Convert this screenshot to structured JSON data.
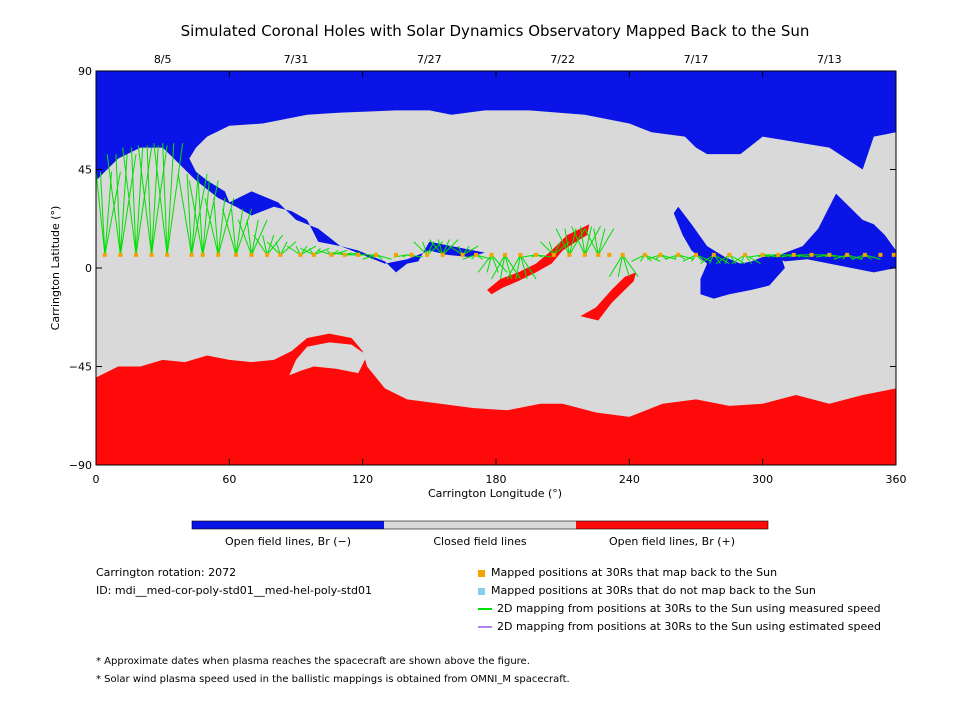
{
  "title": "Simulated Coronal Holes with Solar Dynamics Observatory Mapped Back to the Sun",
  "colors": {
    "open_negative": "#0a14e6",
    "closed": "#d9d9d9",
    "open_positive": "#ff0a0a",
    "mapped": "#f4a300",
    "unmapped": "#87ceeb",
    "measured": "#00e000",
    "estimated": "#b085e8"
  },
  "chart_data": {
    "type": "heatmap",
    "title": "Simulated Coronal Holes with Solar Dynamics Observatory Mapped Back to the Sun",
    "xlabel": "Carrington Longitude (°)",
    "ylabel": "Carrington Latitude (°)",
    "xlim": [
      0,
      360
    ],
    "ylim": [
      -90,
      90
    ],
    "x_ticks": [
      0,
      60,
      120,
      180,
      240,
      300,
      360
    ],
    "y_ticks": [
      -90,
      -45,
      0,
      45,
      90
    ],
    "top_axis_dates": [
      {
        "label": "8/5",
        "lon": 30
      },
      {
        "label": "7/31",
        "lon": 90
      },
      {
        "label": "7/27",
        "lon": 150
      },
      {
        "label": "7/22",
        "lon": 210
      },
      {
        "label": "7/17",
        "lon": 270
      },
      {
        "label": "7/13",
        "lon": 330
      }
    ],
    "colorbar": [
      {
        "label": "Open field lines, Br (−)",
        "color": "#0a14e6"
      },
      {
        "label": "Closed field lines",
        "color": "#d9d9d9"
      },
      {
        "label": "Open field lines, Br (+)",
        "color": "#ff0a0a"
      }
    ],
    "regions": {
      "north_polar_open_negative": [
        [
          0,
          90
        ],
        [
          360,
          90
        ],
        [
          360,
          62
        ],
        [
          350,
          60
        ],
        [
          345,
          45
        ],
        [
          330,
          55
        ],
        [
          300,
          60
        ],
        [
          290,
          52
        ],
        [
          275,
          52
        ],
        [
          270,
          55
        ],
        [
          265,
          60
        ],
        [
          250,
          62
        ],
        [
          240,
          66
        ],
        [
          220,
          70
        ],
        [
          195,
          72
        ],
        [
          175,
          72
        ],
        [
          160,
          70
        ],
        [
          150,
          72
        ],
        [
          135,
          72
        ],
        [
          110,
          71
        ],
        [
          95,
          70
        ],
        [
          75,
          66
        ],
        [
          60,
          65
        ],
        [
          50,
          60
        ],
        [
          45,
          55
        ],
        [
          42,
          50
        ],
        [
          45,
          44
        ],
        [
          50,
          40
        ],
        [
          58,
          35
        ],
        [
          60,
          30
        ],
        [
          70,
          35
        ],
        [
          82,
          30
        ],
        [
          90,
          22
        ],
        [
          100,
          18
        ],
        [
          110,
          10
        ],
        [
          118,
          8
        ],
        [
          125,
          5
        ],
        [
          130,
          3
        ],
        [
          135,
          -2
        ],
        [
          140,
          2
        ],
        [
          145,
          3
        ],
        [
          150,
          12
        ],
        [
          160,
          10
        ],
        [
          175,
          7
        ],
        [
          168,
          5
        ],
        [
          158,
          6
        ],
        [
          150,
          8
        ],
        [
          140,
          4
        ],
        [
          130,
          2
        ],
        [
          120,
          6
        ],
        [
          110,
          10
        ],
        [
          100,
          12
        ],
        [
          95,
          22
        ],
        [
          88,
          26
        ],
        [
          80,
          28
        ],
        [
          70,
          24
        ],
        [
          63,
          28
        ],
        [
          55,
          32
        ],
        [
          45,
          40
        ],
        [
          40,
          45
        ],
        [
          35,
          50
        ],
        [
          30,
          55
        ],
        [
          20,
          55
        ],
        [
          10,
          50
        ],
        [
          5,
          45
        ],
        [
          0,
          40
        ]
      ],
      "equatorial_open_negative_patch": [
        [
          262,
          28
        ],
        [
          268,
          20
        ],
        [
          275,
          10
        ],
        [
          283,
          5
        ],
        [
          290,
          2
        ],
        [
          295,
          3
        ],
        [
          300,
          5
        ],
        [
          308,
          6
        ],
        [
          310,
          0
        ],
        [
          303,
          -8
        ],
        [
          295,
          -10
        ],
        [
          285,
          -12
        ],
        [
          278,
          -14
        ],
        [
          272,
          -12
        ],
        [
          272,
          -5
        ],
        [
          275,
          2
        ],
        [
          268,
          8
        ],
        [
          264,
          15
        ],
        [
          260,
          25
        ]
      ],
      "east_limb_open_negative": [
        [
          305,
          5
        ],
        [
          318,
          10
        ],
        [
          325,
          18
        ],
        [
          330,
          28
        ],
        [
          333,
          34
        ],
        [
          337,
          30
        ],
        [
          345,
          22
        ],
        [
          350,
          20
        ],
        [
          355,
          15
        ],
        [
          360,
          8
        ],
        [
          360,
          0
        ],
        [
          350,
          -2
        ],
        [
          340,
          0
        ],
        [
          330,
          2
        ],
        [
          320,
          4
        ],
        [
          310,
          3
        ]
      ],
      "south_polar_open_positive": [
        [
          0,
          -90
        ],
        [
          360,
          -90
        ],
        [
          360,
          -55
        ],
        [
          345,
          -58
        ],
        [
          330,
          -62
        ],
        [
          315,
          -58
        ],
        [
          300,
          -62
        ],
        [
          285,
          -63
        ],
        [
          270,
          -60
        ],
        [
          255,
          -62
        ],
        [
          240,
          -68
        ],
        [
          225,
          -66
        ],
        [
          210,
          -62
        ],
        [
          200,
          -62
        ],
        [
          185,
          -65
        ],
        [
          170,
          -64
        ],
        [
          155,
          -62
        ],
        [
          140,
          -60
        ],
        [
          130,
          -55
        ],
        [
          122,
          -45
        ],
        [
          120,
          -38
        ],
        [
          115,
          -32
        ],
        [
          105,
          -30
        ],
        [
          95,
          -32
        ],
        [
          88,
          -38
        ],
        [
          80,
          -42
        ],
        [
          70,
          -43
        ],
        [
          60,
          -42
        ],
        [
          50,
          -40
        ],
        [
          40,
          -43
        ],
        [
          30,
          -42
        ],
        [
          20,
          -45
        ],
        [
          10,
          -45
        ],
        [
          0,
          -50
        ]
      ],
      "south_polar_bay": [
        [
          87,
          -49
        ],
        [
          92,
          -47
        ],
        [
          98,
          -45
        ],
        [
          108,
          -46
        ],
        [
          118,
          -48
        ],
        [
          122,
          -40
        ],
        [
          115,
          -35
        ],
        [
          105,
          -34
        ],
        [
          95,
          -36
        ],
        [
          90,
          -42
        ]
      ],
      "equatorial_open_positive_streak": [
        [
          176,
          -10
        ],
        [
          182,
          -5
        ],
        [
          190,
          -2
        ],
        [
          198,
          2
        ],
        [
          205,
          8
        ],
        [
          212,
          15
        ],
        [
          218,
          18
        ],
        [
          222,
          20
        ],
        [
          221,
          15
        ],
        [
          216,
          12
        ],
        [
          210,
          8
        ],
        [
          205,
          2
        ],
        [
          198,
          -2
        ],
        [
          190,
          -6
        ],
        [
          183,
          -9
        ],
        [
          178,
          -12
        ]
      ],
      "isolated_open_positive_patch": [
        [
          218,
          -22
        ],
        [
          225,
          -18
        ],
        [
          232,
          -10
        ],
        [
          238,
          -4
        ],
        [
          243,
          -2
        ],
        [
          242,
          -6
        ],
        [
          238,
          -10
        ],
        [
          232,
          -16
        ],
        [
          226,
          -24
        ]
      ]
    },
    "mapped_points_lon": [
      4,
      11,
      18,
      25,
      32,
      43,
      48,
      55,
      63,
      70,
      77,
      83,
      92,
      98,
      106,
      112,
      118,
      126,
      135,
      142,
      149,
      156,
      165,
      171,
      178,
      184,
      191,
      198,
      206,
      213,
      220,
      226,
      231,
      237,
      247,
      254,
      262,
      270,
      278,
      285,
      292,
      300,
      307,
      314,
      322,
      330,
      338,
      346,
      353,
      359
    ],
    "mapped_points_lat": 6,
    "field_line_footpoints": [
      {
        "lon": 4,
        "lat": 44
      },
      {
        "lon": 11,
        "lat": 52
      },
      {
        "lon": 18,
        "lat": 55
      },
      {
        "lon": 25,
        "lat": 56
      },
      {
        "lon": 32,
        "lat": 57
      },
      {
        "lon": 43,
        "lat": 43
      },
      {
        "lon": 48,
        "lat": 40
      },
      {
        "lon": 55,
        "lat": 32
      },
      {
        "lon": 63,
        "lat": 27
      },
      {
        "lon": 70,
        "lat": 22
      },
      {
        "lon": 77,
        "lat": 15
      },
      {
        "lon": 83,
        "lat": 12
      },
      {
        "lon": 92,
        "lat": 10
      },
      {
        "lon": 98,
        "lat": 9
      },
      {
        "lon": 106,
        "lat": 8
      },
      {
        "lon": 112,
        "lat": 7
      },
      {
        "lon": 118,
        "lat": 6
      },
      {
        "lon": 126,
        "lat": 4
      },
      {
        "lon": 140,
        "lat": 5
      },
      {
        "lon": 149,
        "lat": 12
      },
      {
        "lon": 156,
        "lat": 13
      },
      {
        "lon": 165,
        "lat": 10
      },
      {
        "lon": 171,
        "lat": 4
      },
      {
        "lon": 178,
        "lat": -2
      },
      {
        "lon": 184,
        "lat": -5
      },
      {
        "lon": 191,
        "lat": -5
      },
      {
        "lon": 198,
        "lat": 5
      },
      {
        "lon": 206,
        "lat": 12
      },
      {
        "lon": 213,
        "lat": 18
      },
      {
        "lon": 220,
        "lat": 19
      },
      {
        "lon": 226,
        "lat": 18
      },
      {
        "lon": 237,
        "lat": -4
      },
      {
        "lon": 247,
        "lat": 3
      },
      {
        "lon": 254,
        "lat": 4
      },
      {
        "lon": 262,
        "lat": 4
      },
      {
        "lon": 270,
        "lat": 3
      },
      {
        "lon": 278,
        "lat": 2
      },
      {
        "lon": 285,
        "lat": 2
      },
      {
        "lon": 292,
        "lat": 2
      },
      {
        "lon": 300,
        "lat": 5
      },
      {
        "lon": 307,
        "lat": 6
      },
      {
        "lon": 314,
        "lat": 5
      },
      {
        "lon": 322,
        "lat": 6
      },
      {
        "lon": 330,
        "lat": 5
      },
      {
        "lon": 338,
        "lat": 4
      },
      {
        "lon": 346,
        "lat": 4
      }
    ]
  },
  "legend": [
    {
      "label": "Mapped positions at 30Rs that map back to the Sun",
      "kind": "square",
      "color": "#f4a300"
    },
    {
      "label": "Mapped positions at 30Rs that do not map back to the Sun",
      "kind": "square",
      "color": "#87ceeb"
    },
    {
      "label": "2D mapping from positions at 30Rs to the Sun using measured speed",
      "kind": "line",
      "color": "#00e000"
    },
    {
      "label": "2D mapping from positions at 30Rs to the Sun using estimated speed",
      "kind": "line",
      "color": "#b085e8"
    }
  ],
  "info": {
    "rotation": "Carrington rotation: 2072",
    "id": "ID: mdi__med-cor-poly-std01__med-hel-poly-std01"
  },
  "notes": [
    "* Approximate dates when plasma reaches the spacecraft are shown above the figure.",
    "* Solar wind plasma speed used in the ballistic mappings is obtained from OMNI_M spacecraft."
  ]
}
